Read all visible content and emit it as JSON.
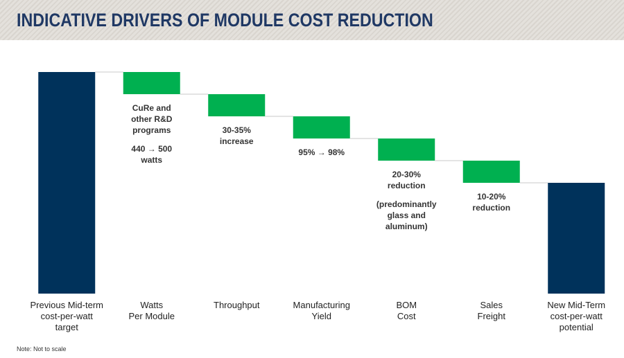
{
  "chart_data": {
    "type": "waterfall",
    "title": "INDICATIVE DRIVERS OF MODULE COST REDUCTION",
    "note": "Note: Not to scale",
    "categories": [
      "Previous Mid-term\ncost-per-watt\ntarget",
      "Watts\nPer Module",
      "Throughput",
      "Manufacturing\nYield",
      "BOM\nCost",
      "Sales\nFreight",
      "New Mid-Term\ncost-per-watt\npotential"
    ],
    "values": [
      100,
      -10,
      -10,
      -10,
      -10,
      -10,
      50
    ],
    "is_total": [
      true,
      false,
      false,
      false,
      false,
      false,
      true
    ],
    "total_color": "#00325b",
    "change_color": "#00b050",
    "annotations": [
      [],
      [
        "CuRe and\nother R&D\nprograms",
        "440 → 500\nwatts"
      ],
      [
        "30-35%\nincrease"
      ],
      [
        "95% → 98%"
      ],
      [
        "20-30%\nreduction",
        "(predominantly\nglass and\naluminum)"
      ],
      [
        "10-20%\nreduction"
      ],
      []
    ],
    "ylim": [
      0,
      100
    ]
  }
}
